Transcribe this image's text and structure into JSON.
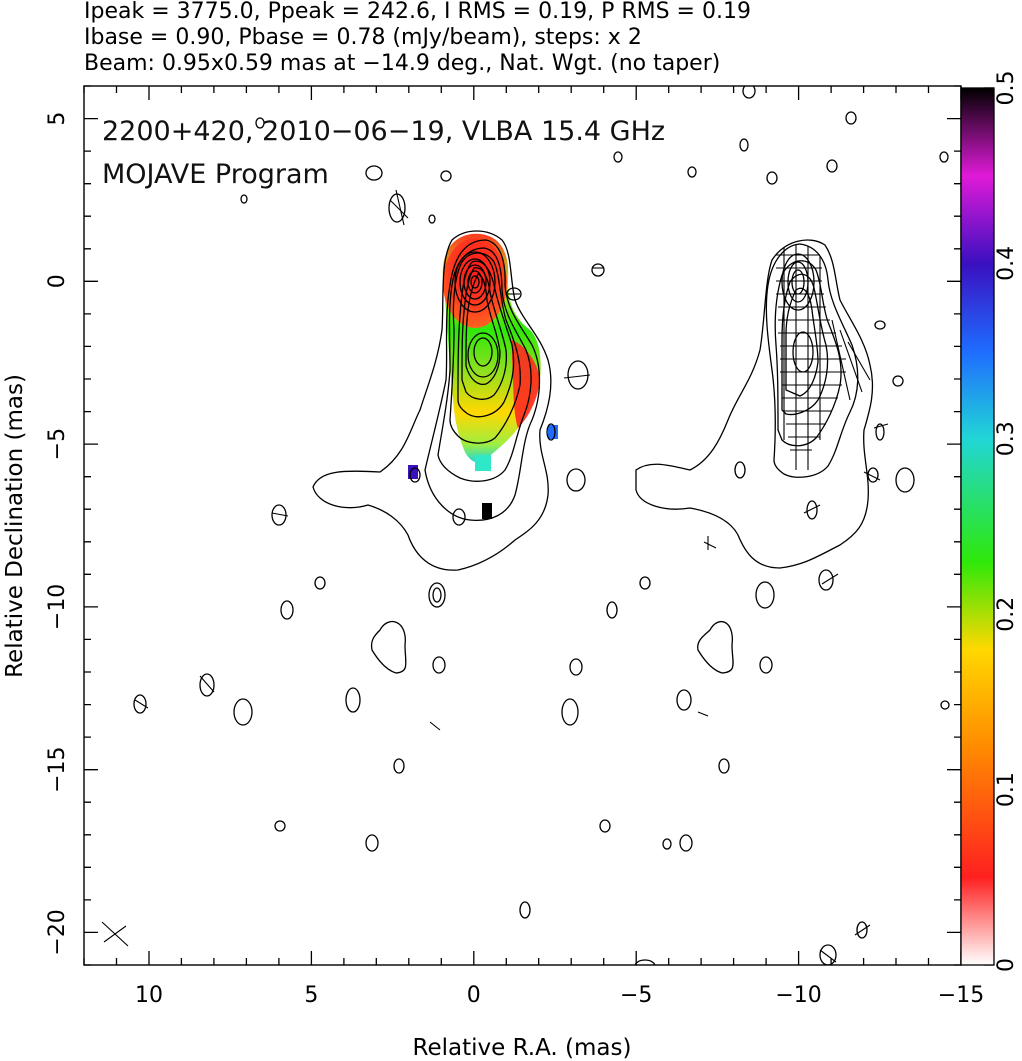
{
  "header": {
    "line1": "Ipeak = 3775.0, Ppeak = 242.6, I RMS = 0.19, P RMS = 0.19",
    "line2": "Ibase = 0.90, Pbase = 0.78 (mJy/beam), steps: x 2",
    "line3": "Beam: 0.95x0.59 mas at −14.9 deg., Nat. Wgt. (no taper)"
  },
  "overlay": {
    "line1": "2200+420, 2010−06−19, VLBA 15.4 GHz",
    "line2": "MOJAVE Program"
  },
  "chart_data": {
    "type": "heatmap",
    "description_source": "VLBA radio map: total-intensity contours with fractional-polarization color overlay",
    "xlabel": "Relative R.A. (mas)",
    "ylabel": "Relative Declination (mas)",
    "xlim": [
      12,
      -15
    ],
    "ylim": [
      -21,
      6
    ],
    "x_ticks": [
      10,
      5,
      0,
      -5,
      -10,
      -15
    ],
    "x_tick_labels": [
      "10",
      "5",
      "0",
      "−5",
      "−10",
      "−15"
    ],
    "y_ticks": [
      5,
      0,
      -5,
      -10,
      -15,
      -20
    ],
    "y_tick_labels": [
      "5",
      "0",
      "−5",
      "−10",
      "−15",
      "−20"
    ],
    "colorbar": {
      "range": [
        0,
        0.5
      ],
      "ticks": [
        0,
        0.1,
        0.2,
        0.3,
        0.4,
        0.5
      ],
      "tick_labels": [
        "0",
        "0.1",
        "0.2",
        "0.3",
        "0.4",
        "0.5"
      ],
      "colormap": [
        "#ffffff",
        "#ff2020",
        "#ff8c00",
        "#ffd800",
        "#2ee80a",
        "#21d6d6",
        "#1f6cff",
        "#3a10c0",
        "#e01ad8",
        "#000000"
      ]
    },
    "contours": {
      "ipeak_mjy": 3775.0,
      "ibase_mjy": 0.9,
      "step_factor": 2,
      "core_position": [
        0,
        0
      ],
      "jet_direction_deg": 190,
      "jet_extent_mas": 8.5
    },
    "fractional_polarization_samples": [
      {
        "x": 0.0,
        "y": 0.0,
        "value": 0.05
      },
      {
        "x": -0.3,
        "y": -1.0,
        "value": 0.08
      },
      {
        "x": -0.3,
        "y": -2.3,
        "value": 0.2
      },
      {
        "x": -1.5,
        "y": -2.8,
        "value": 0.07
      },
      {
        "x": -0.3,
        "y": -4.2,
        "value": 0.22
      },
      {
        "x": -0.3,
        "y": -5.3,
        "value": 0.3
      },
      {
        "x": -0.4,
        "y": -7.0,
        "value": 0.5
      },
      {
        "x": 1.8,
        "y": -5.9,
        "value": 0.42
      },
      {
        "x": -2.4,
        "y": -4.6,
        "value": 0.38
      }
    ],
    "panels": [
      "left: intensity contours + fractional polarization color",
      "right: intensity contours + EVPA sticks"
    ]
  }
}
